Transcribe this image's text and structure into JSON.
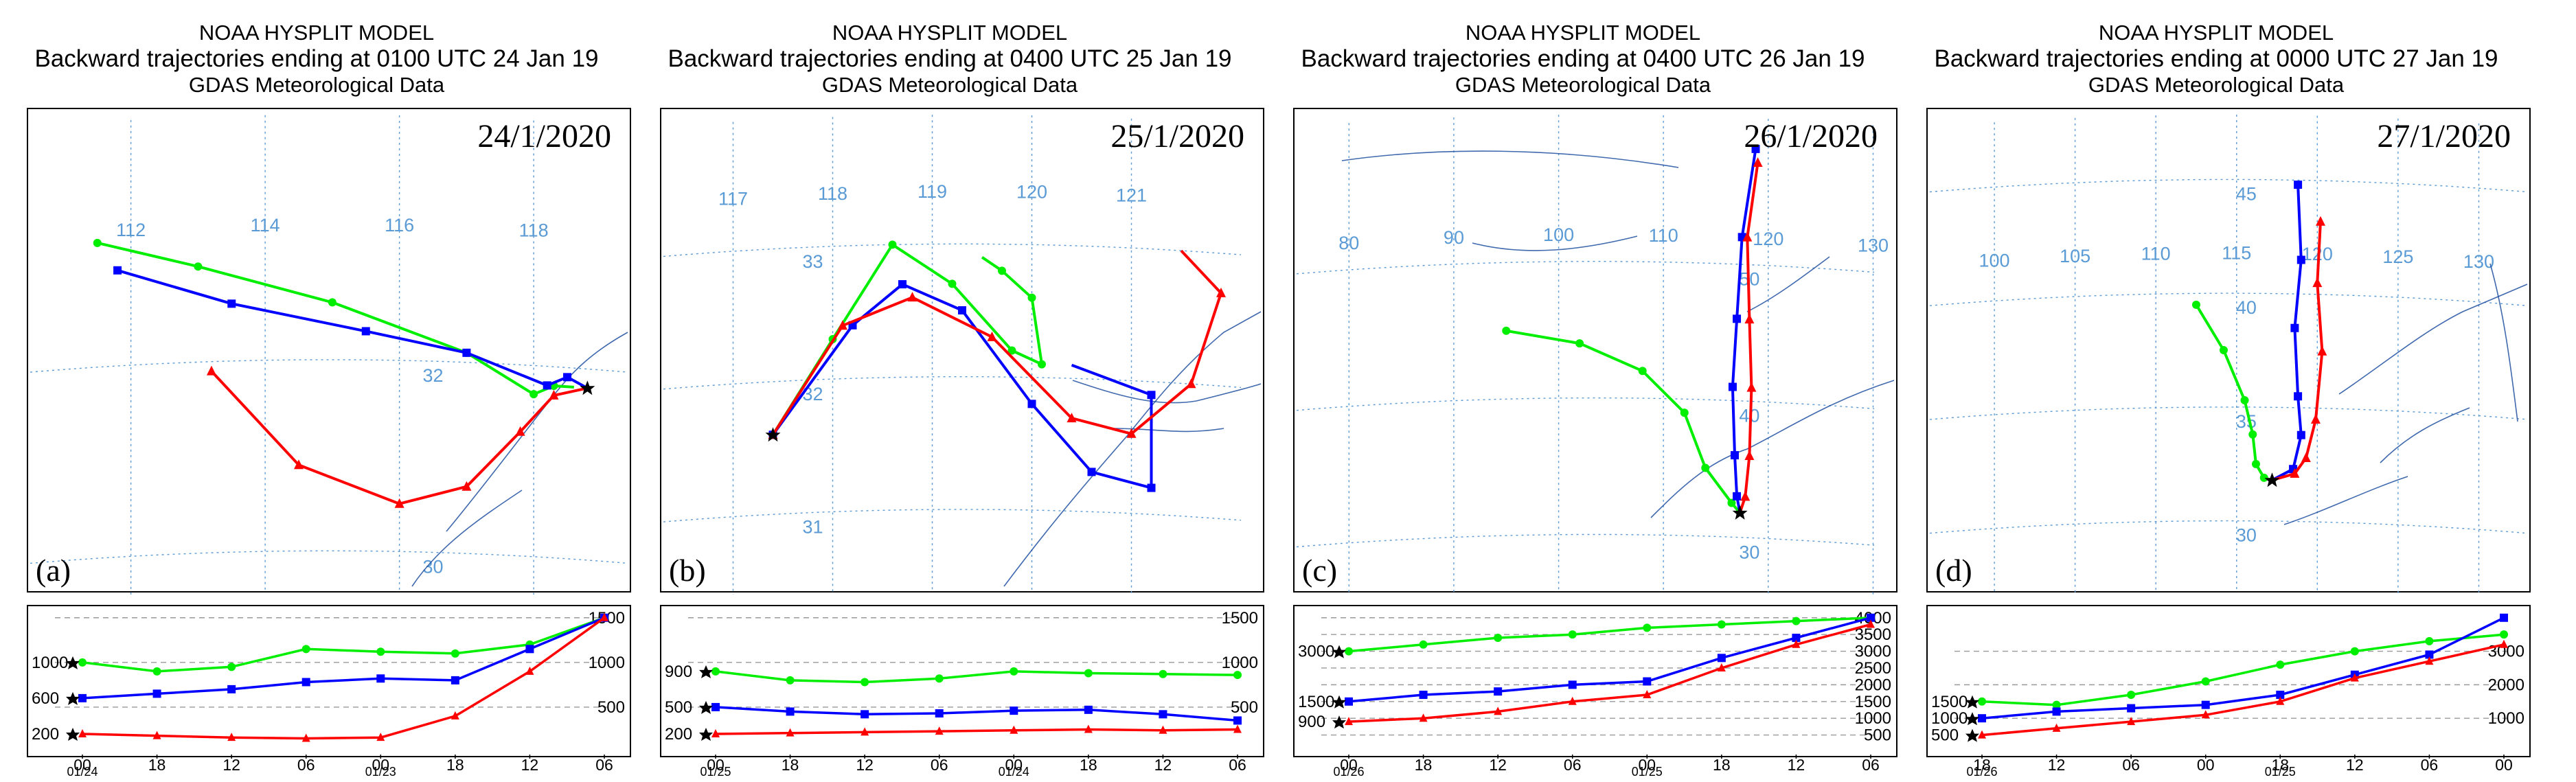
{
  "colors": {
    "trajectory_500": "#ff0000",
    "trajectory_1000": "#0000ff",
    "trajectory_1500": "#00ee00",
    "graticule": "#5b9bd5",
    "coast": "#1f4fa0",
    "grid_dash": "#999999"
  },
  "panels": [
    {
      "label": "(a)",
      "date": "24/1/2020",
      "title": {
        "line1": "NOAA HYSPLIT MODEL",
        "line2": "Backward trajectories ending at 0100 UTC 24 Jan 19",
        "line3": "GDAS Meteorological Data"
      },
      "map": {
        "lons": [
          "112",
          "114",
          "116",
          "118"
        ],
        "lats": [
          "32",
          "30"
        ],
        "meridians": [
          112,
          114,
          116,
          118
        ],
        "parallels": [
          32,
          30
        ],
        "source": [
          118.8,
          31.8
        ],
        "trajectories": [
          {
            "name": "1500 m",
            "color": "green",
            "points": [
              [
                111.5,
                33.3
              ],
              [
                113,
                33.0
              ],
              [
                115,
                32.6
              ],
              [
                117,
                32.1
              ],
              [
                118.0,
                31.7
              ],
              [
                118.3,
                31.8
              ],
              [
                118.6,
                31.8
              ]
            ]
          },
          {
            "name": "1000 m",
            "color": "blue",
            "points": [
              [
                111.8,
                33.0
              ],
              [
                113.5,
                32.6
              ],
              [
                115.5,
                32.3
              ],
              [
                117,
                32.1
              ],
              [
                118.2,
                31.8
              ],
              [
                118.5,
                31.9
              ],
              [
                118.8,
                31.8
              ]
            ]
          },
          {
            "name": "500 m",
            "color": "red",
            "points": [
              [
                113.2,
                31.9
              ],
              [
                114.5,
                30.9
              ],
              [
                116.0,
                30.5
              ],
              [
                117.0,
                30.7
              ],
              [
                117.8,
                31.3
              ],
              [
                118.3,
                31.7
              ],
              [
                118.8,
                31.8
              ]
            ]
          }
        ]
      },
      "profile": {
        "ticks": [
          "00",
          "18",
          "12",
          "06",
          "00",
          "18",
          "12",
          "06"
        ],
        "dates": [
          "01/24",
          "01/23"
        ],
        "left": [
          "1000",
          "600",
          "200"
        ],
        "right": [
          "1500",
          "1000",
          "500"
        ],
        "series": [
          {
            "color": "green",
            "values": [
              1000,
              900,
              950,
              1150,
              1120,
              1100,
              1200,
              1500
            ]
          },
          {
            "color": "blue",
            "values": [
              600,
              650,
              700,
              780,
              820,
              800,
              1150,
              1500
            ]
          },
          {
            "color": "red",
            "values": [
              200,
              180,
              160,
              150,
              160,
              400,
              900,
              1500
            ]
          }
        ]
      }
    },
    {
      "label": "(b)",
      "date": "25/1/2020",
      "title": {
        "line1": "NOAA HYSPLIT MODEL",
        "line2": "Backward trajectories ending at 0400 UTC 25 Jan 19",
        "line3": "GDAS Meteorological Data"
      },
      "map": {
        "lons": [
          "117",
          "118",
          "119",
          "120",
          "121"
        ],
        "lats": [
          "33",
          "32",
          "31"
        ],
        "meridians": [
          117,
          118,
          119,
          120,
          121
        ],
        "parallels": [
          33,
          32,
          31
        ],
        "source": [
          117.4,
          31.6
        ],
        "trajectories": [
          {
            "name": "1500 m",
            "color": "green",
            "points": [
              [
                117.4,
                31.6
              ],
              [
                118.0,
                32.3
              ],
              [
                118.6,
                33.0
              ],
              [
                119.2,
                32.7
              ],
              [
                119.8,
                32.2
              ],
              [
                120.1,
                32.1
              ],
              [
                120.0,
                32.6
              ],
              [
                119.7,
                32.8
              ],
              [
                119.5,
                32.9
              ]
            ]
          },
          {
            "name": "1000 m",
            "color": "blue",
            "points": [
              [
                117.4,
                31.6
              ],
              [
                118.2,
                32.4
              ],
              [
                118.7,
                32.7
              ],
              [
                119.3,
                32.5
              ],
              [
                120.0,
                31.8
              ],
              [
                120.6,
                31.3
              ],
              [
                121.2,
                31.2
              ],
              [
                121.2,
                31.9
              ],
              [
                120.4,
                32.1
              ]
            ]
          },
          {
            "name": "500 m",
            "color": "red",
            "points": [
              [
                117.4,
                31.6
              ],
              [
                118.1,
                32.4
              ],
              [
                118.8,
                32.6
              ],
              [
                119.6,
                32.3
              ],
              [
                120.4,
                31.7
              ],
              [
                121.0,
                31.6
              ],
              [
                121.6,
                32.0
              ],
              [
                121.9,
                32.7
              ],
              [
                121.5,
                33.0
              ]
            ]
          }
        ]
      },
      "profile": {
        "ticks": [
          "00",
          "18",
          "12",
          "06",
          "00",
          "18",
          "12",
          "06"
        ],
        "dates": [
          "01/25",
          "01/24"
        ],
        "left": [
          "900",
          "500",
          "200"
        ],
        "right": [
          "1500",
          "1000",
          "500"
        ],
        "series": [
          {
            "color": "green",
            "values": [
              900,
              800,
              780,
              820,
              900,
              880,
              870,
              860
            ]
          },
          {
            "color": "blue",
            "values": [
              500,
              450,
              420,
              430,
              460,
              470,
              420,
              350
            ]
          },
          {
            "color": "red",
            "values": [
              200,
              210,
              220,
              230,
              240,
              250,
              240,
              250
            ]
          }
        ]
      }
    },
    {
      "label": "(c)",
      "date": "26/1/2020",
      "title": {
        "line1": "NOAA HYSPLIT MODEL",
        "line2": "Backward trajectories ending at 0400 UTC 26 Jan 19",
        "line3": "GDAS Meteorological Data"
      },
      "map": {
        "lons": [
          "80",
          "90",
          "100",
          "110",
          "120",
          "130"
        ],
        "lats": [
          "50",
          "40",
          "30"
        ],
        "meridians": [
          80,
          90,
          100,
          110,
          120,
          130
        ],
        "parallels": [
          50,
          40,
          30
        ],
        "source": [
          117.3,
          31.8
        ],
        "trajectories": [
          {
            "name": "1500 m",
            "color": "green",
            "points": [
              [
                95,
                45
              ],
              [
                102,
                44
              ],
              [
                108,
                42
              ],
              [
                112,
                39
              ],
              [
                114,
                35
              ],
              [
                116.5,
                32.5
              ],
              [
                117.3,
                31.8
              ]
            ]
          },
          {
            "name": "1000 m",
            "color": "blue",
            "points": [
              [
                118.8,
                58.5
              ],
              [
                117.5,
                52
              ],
              [
                117.0,
                46
              ],
              [
                116.6,
                41
              ],
              [
                116.8,
                36
              ],
              [
                117.0,
                33
              ],
              [
                117.3,
                31.8
              ]
            ]
          },
          {
            "name": "500 m",
            "color": "red",
            "points": [
              [
                119.0,
                57.5
              ],
              [
                118.0,
                52
              ],
              [
                118.2,
                46
              ],
              [
                118.4,
                41
              ],
              [
                118.2,
                36
              ],
              [
                117.8,
                33
              ],
              [
                117.3,
                31.8
              ]
            ]
          }
        ]
      },
      "profile": {
        "ticks": [
          "00",
          "18",
          "12",
          "06",
          "00",
          "18",
          "12",
          "06"
        ],
        "dates": [
          "01/26",
          "01/25"
        ],
        "left": [
          "3000",
          "1500",
          "900"
        ],
        "right": [
          "4000",
          "3500",
          "3000",
          "2500",
          "2000",
          "1500",
          "1000",
          "500"
        ],
        "series": [
          {
            "color": "green",
            "values": [
              3000,
              3200,
              3400,
              3500,
              3700,
              3800,
              3900,
              4000
            ]
          },
          {
            "color": "blue",
            "values": [
              1500,
              1700,
              1800,
              2000,
              2100,
              2800,
              3400,
              4000
            ]
          },
          {
            "color": "red",
            "values": [
              900,
              1000,
              1200,
              1500,
              1700,
              2500,
              3200,
              3800
            ]
          }
        ]
      }
    },
    {
      "label": "(d)",
      "date": "27/1/2020",
      "title": {
        "line1": "NOAA HYSPLIT MODEL",
        "line2": "Backward trajectories ending at 0000 UTC 27 Jan 19",
        "line3": "GDAS Meteorological Data"
      },
      "map": {
        "lons": [
          "100",
          "105",
          "110",
          "115",
          "120",
          "125",
          "130"
        ],
        "lats": [
          "45",
          "40",
          "35",
          "30"
        ],
        "meridians": [
          100,
          105,
          110,
          115,
          120,
          125,
          130
        ],
        "parallels": [
          45,
          40,
          35,
          30
        ],
        "source": [
          117.2,
          31.8
        ],
        "trajectories": [
          {
            "name": "1500 m",
            "color": "green",
            "points": [
              [
                112.5,
                39.5
              ],
              [
                114.2,
                37.5
              ],
              [
                115.5,
                35.3
              ],
              [
                116.0,
                33.8
              ],
              [
                116.2,
                32.5
              ],
              [
                116.7,
                31.9
              ],
              [
                117.2,
                31.8
              ]
            ]
          },
          {
            "name": "1000 m",
            "color": "blue",
            "points": [
              [
                118.8,
                44.8
              ],
              [
                119.0,
                41.5
              ],
              [
                118.6,
                38.5
              ],
              [
                118.8,
                35.5
              ],
              [
                119.0,
                33.8
              ],
              [
                118.5,
                32.3
              ],
              [
                117.2,
                31.8
              ]
            ]
          },
          {
            "name": "500 m",
            "color": "red",
            "points": [
              [
                120.2,
                43.2
              ],
              [
                120.0,
                40.5
              ],
              [
                120.3,
                37.5
              ],
              [
                119.9,
                34.5
              ],
              [
                119.3,
                32.8
              ],
              [
                118.6,
                32.1
              ],
              [
                117.2,
                31.8
              ]
            ]
          }
        ]
      },
      "profile": {
        "ticks": [
          "18",
          "12",
          "06",
          "00",
          "18",
          "12",
          "06",
          "00"
        ],
        "dates": [
          "01/26",
          "01/25"
        ],
        "left": [
          "1500",
          "1000",
          "500"
        ],
        "right": [
          "3000",
          "2000",
          "1000"
        ],
        "series": [
          {
            "color": "green",
            "values": [
              1500,
              1400,
              1700,
              2100,
              2600,
              3000,
              3300,
              3500
            ]
          },
          {
            "color": "blue",
            "values": [
              1000,
              1200,
              1300,
              1400,
              1700,
              2300,
              2900,
              4000
            ]
          },
          {
            "color": "red",
            "values": [
              500,
              700,
              900,
              1100,
              1500,
              2200,
              2700,
              3200
            ]
          }
        ]
      }
    }
  ]
}
